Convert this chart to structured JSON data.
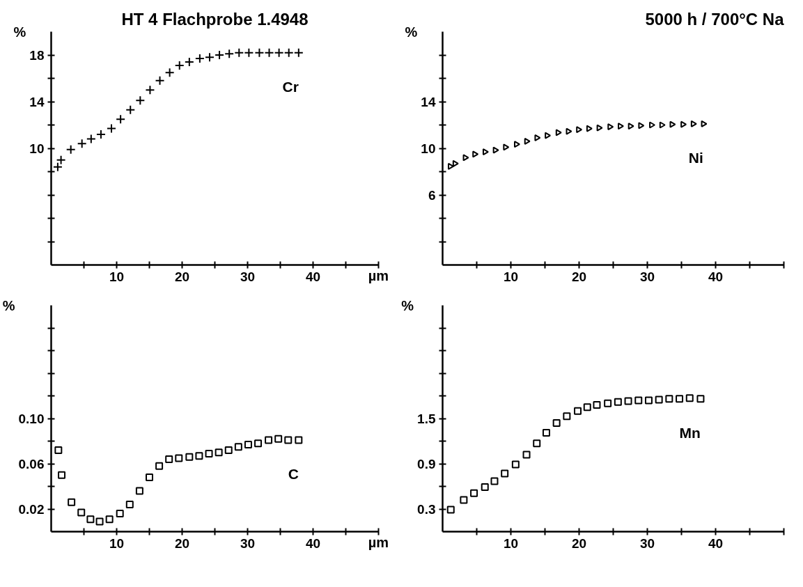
{
  "chart_data": [
    {
      "type": "scatter",
      "title": "HT 4 Flachprobe 1.4948",
      "xlabel": "µm",
      "ylabel": "%",
      "marker": "cross",
      "xlim": [
        0,
        50
      ],
      "ylim": [
        0,
        20
      ],
      "xticks": [
        {
          "value": 5,
          "label": null
        },
        10,
        {
          "value": 15,
          "label": null
        },
        20,
        {
          "value": 25,
          "label": null
        },
        30,
        {
          "value": 35,
          "label": null
        },
        40,
        {
          "value": 45,
          "label": null
        },
        {
          "value": 50,
          "label": null
        }
      ],
      "yticks": [
        {
          "value": 2,
          "label": null
        },
        {
          "value": 4,
          "label": null
        },
        {
          "value": 6,
          "label": null
        },
        {
          "value": 8,
          "label": null
        },
        10,
        {
          "value": 12,
          "label": null
        },
        14,
        {
          "value": 16,
          "label": null
        },
        18
      ],
      "series": [
        {
          "name": "Cr",
          "color": "#000000",
          "x": [
            1.0,
            1.5,
            3.0,
            4.7,
            6.1,
            7.6,
            9.2,
            10.6,
            12.1,
            13.6,
            15.1,
            16.6,
            18.1,
            19.6,
            21.1,
            22.7,
            24.2,
            25.7,
            27.2,
            28.7,
            30.2,
            31.8,
            33.3,
            34.8,
            36.3,
            37.8
          ],
          "values": [
            8.4,
            9.0,
            9.9,
            10.4,
            10.8,
            11.2,
            11.7,
            12.5,
            13.3,
            14.1,
            15.0,
            15.8,
            16.5,
            17.1,
            17.4,
            17.7,
            17.8,
            18.0,
            18.1,
            18.2,
            18.2,
            18.2,
            18.2,
            18.2,
            18.2,
            18.2
          ]
        }
      ]
    },
    {
      "type": "scatter",
      "title": "5000 h / 700°C Na",
      "ylabel": "%",
      "marker": "triangle",
      "xlim": [
        0,
        50
      ],
      "ylim": [
        0,
        20
      ],
      "xticks": [
        {
          "value": 5,
          "label": null
        },
        10,
        {
          "value": 15,
          "label": null
        },
        20,
        {
          "value": 25,
          "label": null
        },
        30,
        {
          "value": 35,
          "label": null
        },
        40,
        {
          "value": 45,
          "label": null
        },
        {
          "value": 50,
          "label": null
        }
      ],
      "yticks": [
        {
          "value": 2,
          "label": null
        },
        {
          "value": 4,
          "label": null
        },
        6,
        {
          "value": 8,
          "label": null
        },
        10,
        {
          "value": 12,
          "label": null
        },
        14,
        {
          "value": 16,
          "label": null
        },
        {
          "value": 18,
          "label": null
        }
      ],
      "series": [
        {
          "name": "Ni",
          "color": "#000000",
          "x": [
            1.1,
            1.8,
            3.3,
            4.7,
            6.2,
            7.7,
            9.2,
            10.8,
            12.3,
            13.8,
            15.3,
            16.9,
            18.4,
            19.9,
            21.4,
            22.9,
            24.5,
            26.0,
            27.5,
            29.0,
            30.6,
            32.1,
            33.6,
            35.2,
            36.7,
            38.2
          ],
          "values": [
            8.45,
            8.7,
            9.2,
            9.5,
            9.7,
            9.85,
            10.1,
            10.35,
            10.6,
            10.9,
            11.1,
            11.35,
            11.45,
            11.6,
            11.7,
            11.75,
            11.85,
            11.9,
            11.9,
            11.95,
            12.0,
            12.0,
            12.05,
            12.05,
            12.1,
            12.1
          ]
        }
      ]
    },
    {
      "type": "scatter",
      "xlabel": "µm",
      "ylabel": "%",
      "marker": "square",
      "xlim": [
        0,
        50
      ],
      "ylim": [
        0,
        0.2
      ],
      "xticks": [
        {
          "value": 5,
          "label": null
        },
        10,
        {
          "value": 15,
          "label": null
        },
        20,
        {
          "value": 25,
          "label": null
        },
        30,
        {
          "value": 35,
          "label": null
        },
        40,
        {
          "value": 45,
          "label": null
        },
        {
          "value": 50,
          "label": null
        }
      ],
      "yticks": [
        0.02,
        {
          "value": 0.04,
          "label": null
        },
        0.06,
        {
          "value": 0.08,
          "label": null
        },
        {
          "value": 0.1,
          "label": "0.10"
        },
        {
          "value": 0.12,
          "label": null
        },
        {
          "value": 0.14,
          "label": null
        },
        {
          "value": 0.16,
          "label": null
        },
        {
          "value": 0.18,
          "label": null
        }
      ],
      "series": [
        {
          "name": "C",
          "color": "#000000",
          "x": [
            1.1,
            1.6,
            3.1,
            4.6,
            6.0,
            7.4,
            8.9,
            10.5,
            12.0,
            13.5,
            15.0,
            16.5,
            18.0,
            19.5,
            21.1,
            22.6,
            24.1,
            25.6,
            27.1,
            28.6,
            30.1,
            31.6,
            33.2,
            34.7,
            36.2,
            37.8
          ],
          "values": [
            0.072,
            0.05,
            0.026,
            0.017,
            0.011,
            0.009,
            0.011,
            0.016,
            0.024,
            0.036,
            0.048,
            0.058,
            0.064,
            0.065,
            0.066,
            0.067,
            0.069,
            0.07,
            0.072,
            0.075,
            0.077,
            0.078,
            0.081,
            0.082,
            0.081,
            0.081
          ]
        }
      ]
    },
    {
      "type": "scatter",
      "ylabel": "%",
      "marker": "square",
      "xlim": [
        0,
        50
      ],
      "ylim": [
        0,
        3.0
      ],
      "xticks": [
        {
          "value": 5,
          "label": null
        },
        10,
        {
          "value": 15,
          "label": null
        },
        20,
        {
          "value": 25,
          "label": null
        },
        30,
        {
          "value": 35,
          "label": null
        },
        40,
        {
          "value": 45,
          "label": null
        },
        {
          "value": 50,
          "label": null
        }
      ],
      "yticks": [
        0.3,
        {
          "value": 0.6,
          "label": null
        },
        0.9,
        {
          "value": 1.2,
          "label": null
        },
        1.5,
        {
          "value": 1.8,
          "label": null
        },
        {
          "value": 2.1,
          "label": null
        },
        {
          "value": 2.4,
          "label": null
        },
        {
          "value": 2.7,
          "label": null
        }
      ],
      "series": [
        {
          "name": "Mn",
          "color": "#000000",
          "x": [
            1.2,
            3.1,
            4.6,
            6.2,
            7.6,
            9.1,
            10.7,
            12.3,
            13.8,
            15.2,
            16.7,
            18.2,
            19.8,
            21.2,
            22.6,
            24.2,
            25.7,
            27.2,
            28.7,
            30.2,
            31.7,
            33.2,
            34.7,
            36.2,
            37.8
          ],
          "values": [
            0.29,
            0.42,
            0.51,
            0.59,
            0.67,
            0.77,
            0.89,
            1.02,
            1.17,
            1.31,
            1.44,
            1.53,
            1.6,
            1.65,
            1.68,
            1.7,
            1.72,
            1.73,
            1.74,
            1.74,
            1.75,
            1.76,
            1.76,
            1.77,
            1.76
          ]
        }
      ]
    }
  ]
}
